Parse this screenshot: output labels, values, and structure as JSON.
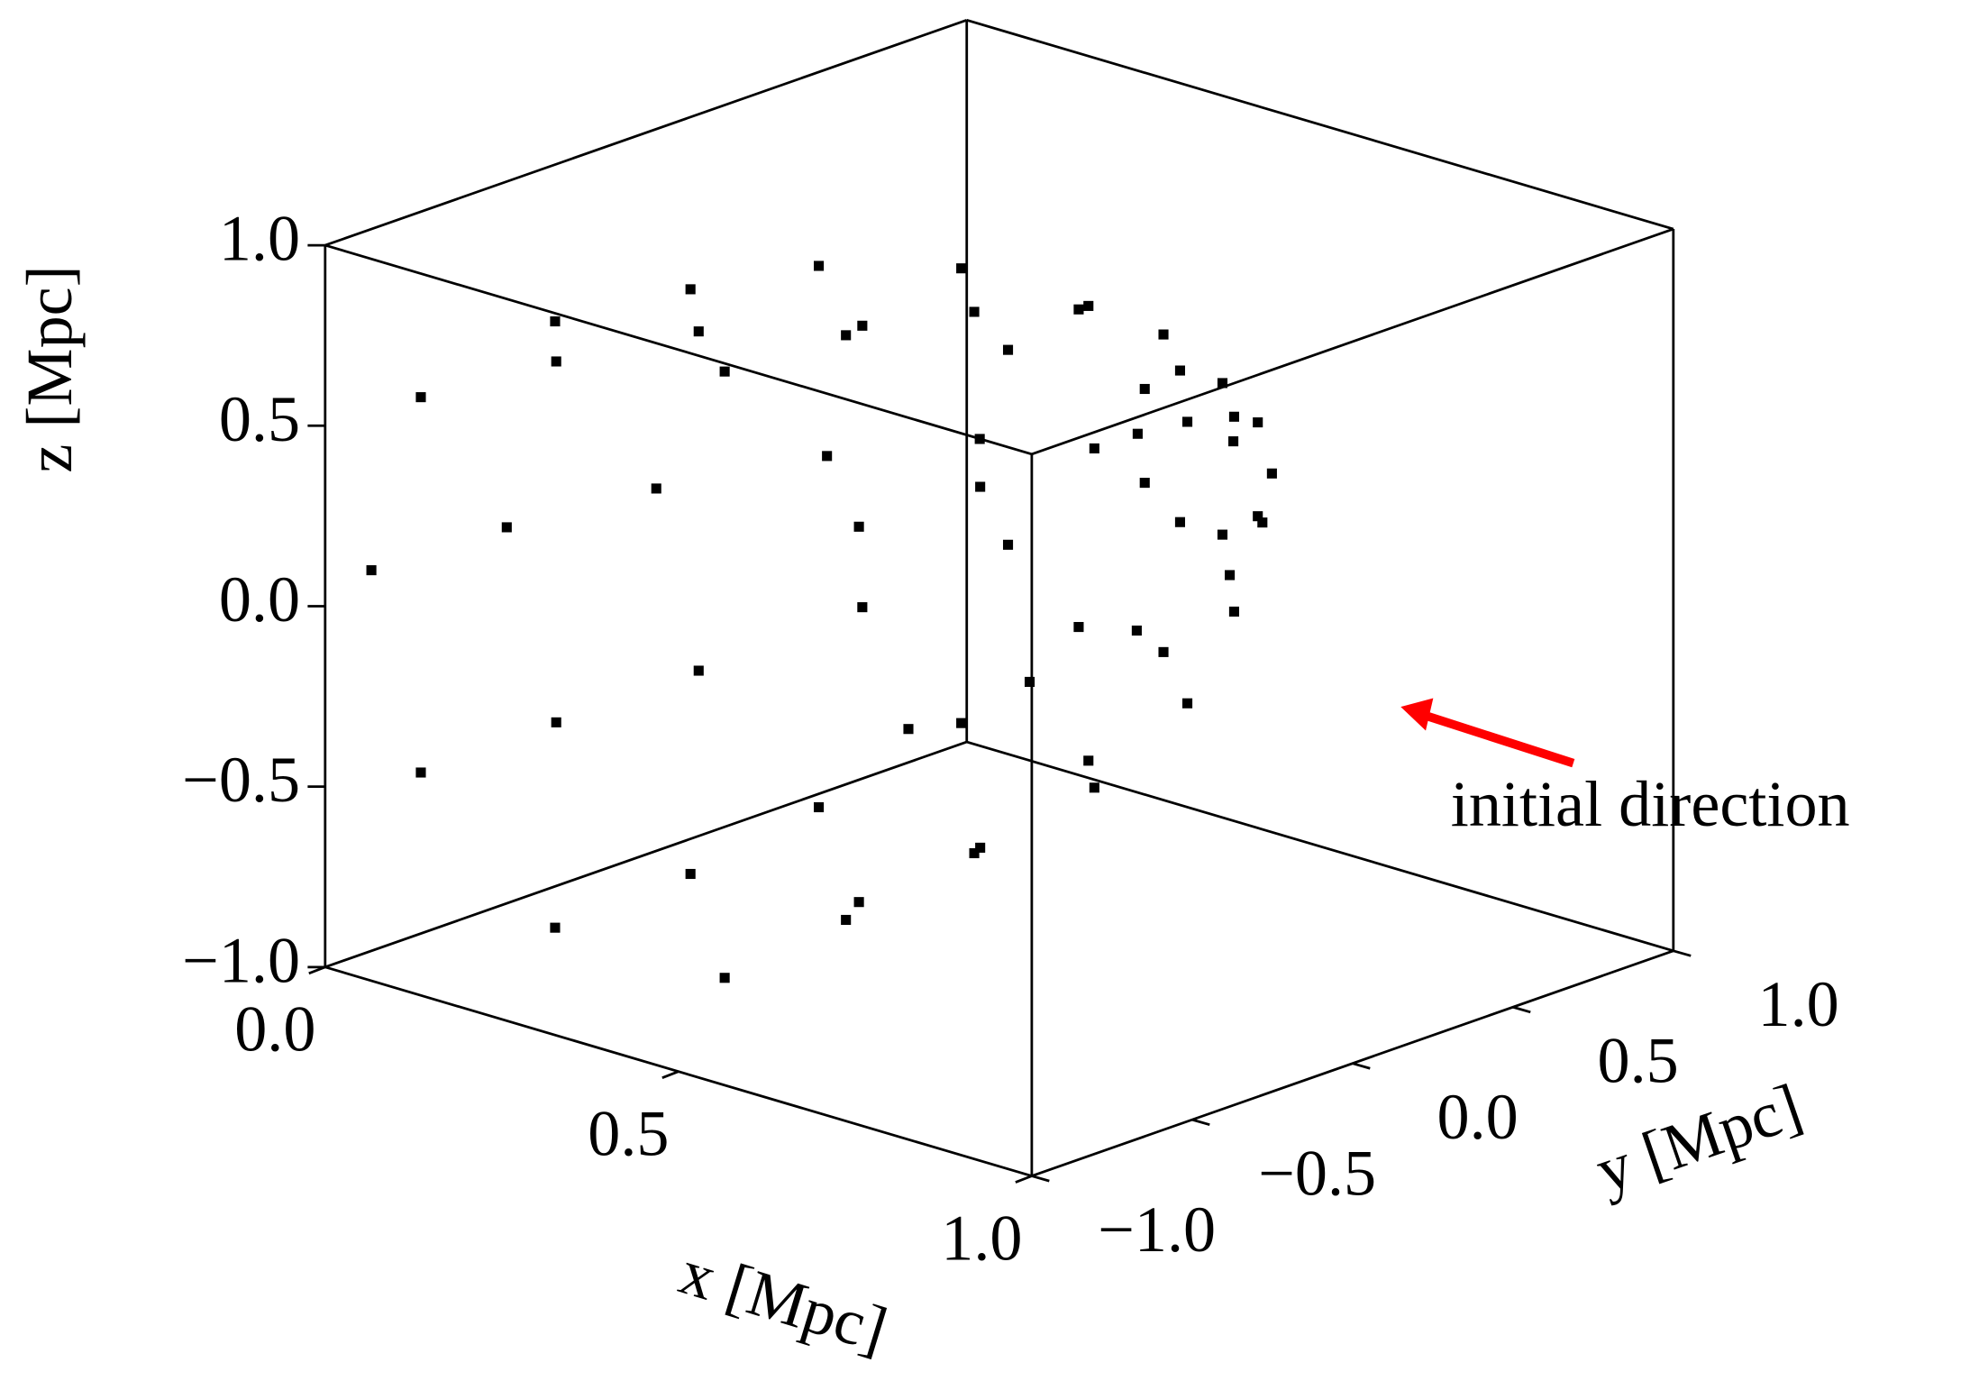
{
  "chart_data": {
    "type": "scatter3d",
    "x_label": "x [Mpc]",
    "y_label": "y [Mpc]",
    "z_label": "z [Mpc]",
    "annotation": "initial direction",
    "xlim": [
      0,
      1
    ],
    "ylim": [
      -1,
      1
    ],
    "zlim": [
      -1,
      1
    ],
    "xticks": [
      {
        "value": 0,
        "label": "0.0"
      },
      0.5,
      {
        "value": 1,
        "label": "1.0"
      }
    ],
    "yticks": [
      {
        "value": -1,
        "label": "−1.0"
      },
      {
        "value": -0.5,
        "label": "−0.5"
      },
      {
        "value": 0,
        "label": "0.0"
      },
      0.5,
      {
        "value": 1,
        "label": "1.0"
      }
    ],
    "zticks": [
      {
        "value": -1,
        "label": "−1.0"
      },
      {
        "value": -0.5,
        "label": "−0.5"
      },
      {
        "value": 0,
        "label": "0.0"
      },
      0.5,
      {
        "value": 1,
        "label": "1.0"
      }
    ],
    "series": [
      {
        "color": "#000000",
        "x": [
          0.78,
          0.71,
          0.52,
          0.28,
          0.09,
          0.02,
          0.09,
          0.28,
          0.52,
          0.71,
          0.77,
          0.7,
          0.51,
          0.29,
          0.1,
          0.03,
          0.1,
          0.29,
          0.51,
          0.7,
          0.74,
          0.68,
          0.51,
          0.29,
          0.12,
          0.06,
          0.12,
          0.29,
          0.51,
          0.68,
          0.69,
          0.63,
          0.49,
          0.31,
          0.17,
          0.12,
          0.17,
          0.31,
          0.49,
          0.63,
          0.6,
          0.56,
          0.46,
          0.34,
          0.24,
          0.2,
          0.24,
          0.34,
          0.46,
          0.56,
          0.5,
          0.48,
          0.43,
          0.37,
          0.32,
          0.31,
          0.32,
          0.37,
          0.43,
          0.48,
          0.4
        ],
        "y": [
          -0.9,
          -0.9,
          -0.9,
          -0.9,
          -0.9,
          -0.9,
          -0.9,
          -0.9,
          -0.9,
          -0.9,
          -0.5,
          -0.5,
          -0.5,
          -0.5,
          -0.5,
          -0.5,
          -0.5,
          -0.5,
          -0.5,
          -0.5,
          -0.1,
          -0.1,
          -0.1,
          -0.1,
          -0.1,
          -0.1,
          -0.1,
          -0.1,
          -0.1,
          -0.1,
          0.3,
          0.3,
          0.3,
          0.3,
          0.3,
          0.3,
          0.3,
          0.3,
          0.3,
          0.3,
          0.6,
          0.6,
          0.6,
          0.6,
          0.6,
          0.6,
          0.6,
          0.6,
          0.6,
          0.6,
          0.85,
          0.85,
          0.85,
          0.85,
          0.85,
          0.85,
          0.85,
          0.85,
          0.85,
          0.85,
          0.95
        ],
        "z": [
          0.08,
          0.6,
          0.92,
          0.92,
          0.6,
          0.08,
          -0.44,
          -0.76,
          -0.76,
          -0.44,
          0.08,
          0.58,
          0.89,
          0.89,
          0.58,
          0.08,
          -0.42,
          -0.73,
          -0.73,
          -0.42,
          0.08,
          0.55,
          0.83,
          0.83,
          0.55,
          0.08,
          -0.39,
          -0.67,
          -0.67,
          -0.39,
          0.08,
          0.47,
          0.71,
          0.71,
          0.47,
          0.08,
          -0.31,
          -0.55,
          -0.55,
          -0.31,
          0.08,
          0.35,
          0.52,
          0.52,
          0.35,
          0.08,
          -0.19,
          -0.36,
          -0.36,
          -0.19,
          0.08,
          0.21,
          0.29,
          0.29,
          0.21,
          0.08,
          -0.05,
          -0.13,
          -0.13,
          -0.05,
          0.08
        ]
      }
    ]
  }
}
